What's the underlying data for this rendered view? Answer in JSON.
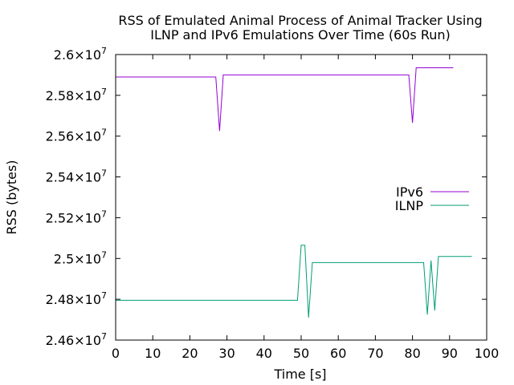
{
  "chart_data": {
    "type": "line",
    "title": [
      "RSS of Emulated Animal Process of Animal Tracker Using",
      "ILNP and IPv6 Emulations Over Time (60s Run)"
    ],
    "xlabel": "Time [s]",
    "ylabel": "RSS (bytes)",
    "xlim": [
      0,
      100
    ],
    "ylim": [
      24600000,
      26000000
    ],
    "x_ticks": [
      0,
      10,
      20,
      30,
      40,
      50,
      60,
      70,
      80,
      90,
      100
    ],
    "y_ticks": [
      {
        "value": 24600000,
        "mantissa": "2.46"
      },
      {
        "value": 24800000,
        "mantissa": "2.48"
      },
      {
        "value": 25000000,
        "mantissa": "2.5"
      },
      {
        "value": 25200000,
        "mantissa": "2.52"
      },
      {
        "value": 25400000,
        "mantissa": "2.54"
      },
      {
        "value": 25600000,
        "mantissa": "2.56"
      },
      {
        "value": 25800000,
        "mantissa": "2.58"
      },
      {
        "value": 26000000,
        "mantissa": "2.6"
      }
    ],
    "tick_suffix": "×10",
    "tick_exponent": "7",
    "grid": false,
    "legend_position": "right-middle",
    "series": [
      {
        "name": "IPv6",
        "color": "#9400d3",
        "points": [
          [
            0,
            25890000
          ],
          [
            27,
            25890000
          ],
          [
            28,
            25625000
          ],
          [
            29,
            25900000
          ],
          [
            79,
            25900000
          ],
          [
            80,
            25665000
          ],
          [
            81,
            25935000
          ],
          [
            91,
            25935000
          ]
        ]
      },
      {
        "name": "ILNP",
        "color": "#009e73",
        "points": [
          [
            0,
            24795000
          ],
          [
            49,
            24795000
          ],
          [
            50,
            25065000
          ],
          [
            51,
            25065000
          ],
          [
            52,
            24710000
          ],
          [
            53,
            24980000
          ],
          [
            83,
            24980000
          ],
          [
            84,
            24725000
          ],
          [
            85,
            24990000
          ],
          [
            86,
            24745000
          ],
          [
            87,
            25010000
          ],
          [
            96,
            25010000
          ]
        ]
      }
    ]
  }
}
